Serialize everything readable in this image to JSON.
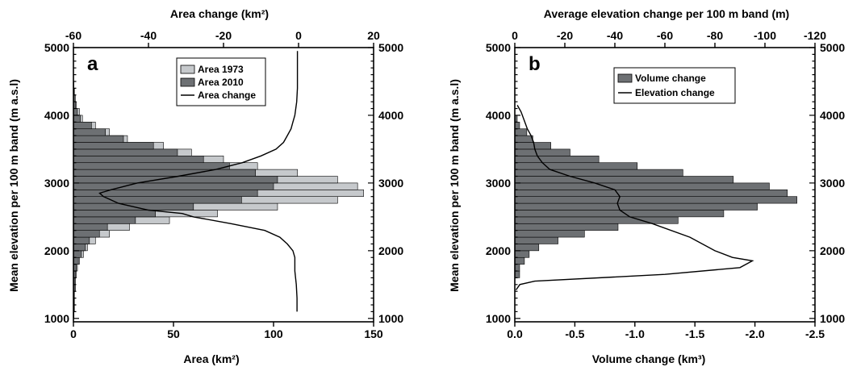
{
  "chart_data": [
    {
      "panel_label": "a",
      "type": "bar",
      "orientation": "horizontal",
      "title": "",
      "xlabel": "Area (km²)",
      "x2label": "Area change (km²)",
      "ylabel": "Mean elevation per 100 m band (m a.s.l)",
      "xlim": [
        0,
        150
      ],
      "x2lim": [
        -60,
        20
      ],
      "ylim": [
        950,
        5000
      ],
      "x_ticks": [
        "0",
        "50",
        "100",
        "150"
      ],
      "x2_ticks": [
        "-60",
        "-40",
        "-20",
        "0",
        "20"
      ],
      "y_ticks": [
        "1000",
        "2000",
        "3000",
        "4000",
        "5000"
      ],
      "grid": false,
      "legend_position": "top-right",
      "elevation_bands": [
        1050,
        1150,
        1250,
        1350,
        1450,
        1550,
        1650,
        1750,
        1850,
        1950,
        2050,
        2150,
        2250,
        2350,
        2450,
        2550,
        2650,
        2750,
        2850,
        2950,
        3050,
        3150,
        3250,
        3350,
        3450,
        3550,
        3650,
        3750,
        3850,
        3950,
        4050,
        4150,
        4250,
        4350,
        4450,
        4550
      ],
      "series": [
        {
          "name": "Area 1973",
          "color": "#c6c9cc",
          "values": [
            0.3,
            0.5,
            0.5,
            0.5,
            1,
            1,
            1.5,
            2,
            3,
            5,
            7,
            11,
            18,
            28,
            48,
            72,
            102,
            132,
            145,
            142,
            132,
            112,
            92,
            75,
            59,
            45,
            27,
            18,
            11,
            4.5,
            3,
            1.5,
            1,
            0.5,
            0.2,
            0.1
          ]
        },
        {
          "name": "Area 2010",
          "color": "#6d7073",
          "values": [
            0.2,
            0.3,
            0.3,
            0.4,
            0.8,
            0.8,
            1,
            1.5,
            2.5,
            4,
            6,
            8,
            13,
            17,
            31,
            41,
            60,
            84,
            92,
            100,
            102,
            91,
            78,
            65,
            52,
            40,
            25,
            16,
            9,
            3.5,
            2,
            1,
            0.5,
            0.3,
            0.1,
            0.05
          ]
        },
        {
          "name": "Area change",
          "color": "#000000",
          "points": [
            [
              1100,
              -0.4
            ],
            [
              1300,
              -0.4
            ],
            [
              1500,
              -0.6
            ],
            [
              1700,
              -1
            ],
            [
              1900,
              -1
            ],
            [
              2000,
              -1.5
            ],
            [
              2100,
              -3
            ],
            [
              2200,
              -5
            ],
            [
              2300,
              -9
            ],
            [
              2400,
              -18
            ],
            [
              2500,
              -28
            ],
            [
              2550,
              -31
            ],
            [
              2600,
              -40
            ],
            [
              2700,
              -48
            ],
            [
              2800,
              -52
            ],
            [
              2850,
              -53
            ],
            [
              2900,
              -50
            ],
            [
              3000,
              -43
            ],
            [
              3100,
              -32
            ],
            [
              3200,
              -22
            ],
            [
              3300,
              -15
            ],
            [
              3400,
              -10
            ],
            [
              3500,
              -6
            ],
            [
              3600,
              -4
            ],
            [
              3700,
              -3
            ],
            [
              3800,
              -2
            ],
            [
              3900,
              -1.5
            ],
            [
              4000,
              -1
            ],
            [
              4200,
              -0.5
            ],
            [
              4400,
              -0.3
            ],
            [
              4700,
              -0.3
            ],
            [
              4950,
              -0.3
            ]
          ]
        }
      ]
    },
    {
      "panel_label": "b",
      "type": "bar",
      "orientation": "horizontal",
      "title": "",
      "xlabel": "Volume change (km³)",
      "x2label": "Average elevation change per 100 m band (m)",
      "ylabel": "Mean elevation per 100 m band (m a.s.l)",
      "xlim": [
        0,
        -2.5
      ],
      "x2lim": [
        0,
        -120
      ],
      "ylim": [
        950,
        5000
      ],
      "x_ticks": [
        "0.0",
        "-0.5",
        "-1.0",
        "-1.5",
        "-2.0",
        "-2.5"
      ],
      "x2_ticks": [
        "0",
        "-20",
        "-40",
        "-60",
        "-80",
        "-100",
        "-120"
      ],
      "y_ticks": [
        "1000",
        "2000",
        "3000",
        "4000",
        "5000"
      ],
      "grid": false,
      "legend_position": "top-right",
      "elevation_bands": [
        1650,
        1750,
        1850,
        1950,
        2050,
        2150,
        2250,
        2350,
        2450,
        2550,
        2650,
        2750,
        2850,
        2950,
        3050,
        3150,
        3250,
        3350,
        3450,
        3550,
        3650,
        3750,
        3850,
        3950
      ],
      "series": [
        {
          "name": "Volume change",
          "color": "#6d7073",
          "values": [
            -0.04,
            -0.04,
            -0.08,
            -0.12,
            -0.2,
            -0.36,
            -0.58,
            -0.86,
            -1.36,
            -1.74,
            -2.02,
            -2.35,
            -2.27,
            -2.12,
            -1.82,
            -1.4,
            -1.02,
            -0.7,
            -0.46,
            -0.3,
            -0.15,
            -0.1,
            -0.04,
            -0.02
          ]
        },
        {
          "name": "Elevation change",
          "color": "#000000",
          "points": [
            [
              1420,
              -0.5
            ],
            [
              1500,
              -2
            ],
            [
              1550,
              -8
            ],
            [
              1650,
              -60
            ],
            [
              1750,
              -90
            ],
            [
              1850,
              -95
            ],
            [
              1900,
              -87
            ],
            [
              2000,
              -80
            ],
            [
              2200,
              -70
            ],
            [
              2400,
              -55
            ],
            [
              2500,
              -46
            ],
            [
              2600,
              -42
            ],
            [
              2700,
              -41
            ],
            [
              2800,
              -42
            ],
            [
              2900,
              -40
            ],
            [
              3000,
              -32
            ],
            [
              3100,
              -22
            ],
            [
              3200,
              -14
            ],
            [
              3300,
              -11
            ],
            [
              3400,
              -9
            ],
            [
              3500,
              -8
            ],
            [
              3600,
              -7.5
            ],
            [
              3700,
              -6.5
            ],
            [
              3800,
              -5
            ],
            [
              3900,
              -4
            ],
            [
              4050,
              -2.5
            ],
            [
              4150,
              -1
            ]
          ]
        }
      ]
    }
  ]
}
